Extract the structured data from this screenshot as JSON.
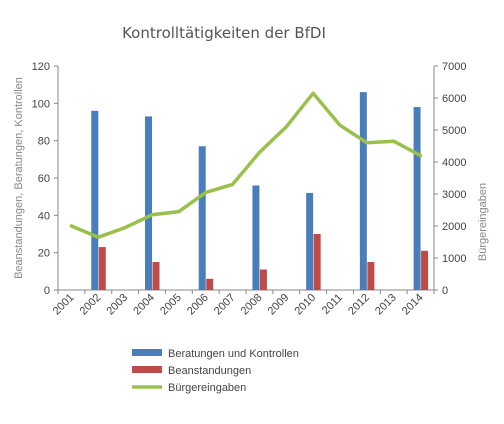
{
  "chart_data": {
    "type": "bar",
    "title": "Kontrolltätigkeiten der BfDI",
    "categories": [
      "2001",
      "2002",
      "2003",
      "2004",
      "2005",
      "2006",
      "2007",
      "2008",
      "2009",
      "2010",
      "2011",
      "2012",
      "2013",
      "2014"
    ],
    "series": [
      {
        "name": "Beratungen und Kontrollen",
        "type": "bar",
        "axis": "left",
        "color": "#4a7ebb",
        "values": [
          null,
          96,
          null,
          93,
          null,
          77,
          null,
          56,
          null,
          52,
          null,
          106,
          null,
          98
        ]
      },
      {
        "name": "Beanstandungen",
        "type": "bar",
        "axis": "left",
        "color": "#be4b48",
        "values": [
          null,
          23,
          null,
          15,
          null,
          6,
          null,
          11,
          null,
          30,
          null,
          15,
          null,
          21
        ]
      },
      {
        "name": "Bürgereingaben",
        "type": "line",
        "axis": "right",
        "color": "#98c04a",
        "values": [
          2000,
          1650,
          1950,
          2350,
          2450,
          3050,
          3300,
          4300,
          5100,
          6150,
          5150,
          4600,
          4650,
          4200
        ]
      }
    ],
    "ylabel": "Beanstandungen, Beratungen, Kontrollen",
    "ylabel_right": "Bürgereingaben",
    "ylim": [
      0,
      120
    ],
    "ylim_right": [
      0,
      7000
    ],
    "yticks": [
      "0",
      "20",
      "40",
      "60",
      "80",
      "100",
      "120"
    ],
    "yticks_right": [
      "0",
      "1000",
      "2000",
      "3000",
      "4000",
      "5000",
      "6000",
      "7000"
    ],
    "grid": false,
    "legend_position": "bottom"
  }
}
